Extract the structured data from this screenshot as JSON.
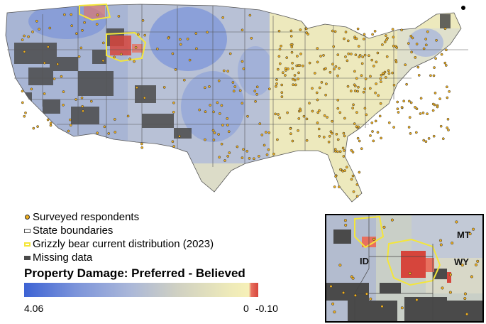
{
  "legend": {
    "items": [
      {
        "label": "Surveyed respondents",
        "icon": "respondent-dot-icon"
      },
      {
        "label": "State boundaries",
        "icon": "state-boundary-swatch-icon"
      },
      {
        "label": "Grizzly bear current distribution (2023)",
        "icon": "grizzly-range-swatch-icon"
      },
      {
        "label": "Missing data",
        "icon": "missing-data-swatch-icon"
      }
    ],
    "title": "Property Damage: Preferred - Believed"
  },
  "colorbar": {
    "min_label": "4.06",
    "zero_label": "0",
    "max_label": "-0.10",
    "colors": [
      "#3d63d4",
      "#aab7d9",
      "#eeeab9",
      "#d6453c"
    ]
  },
  "inset": {
    "labels": [
      "MT",
      "ID",
      "WY"
    ]
  },
  "colors": {
    "respondent": "#f0b020",
    "grizzly_outline": "#f4e63a",
    "missing": "#4a4a4a",
    "state_line": "#555555"
  }
}
